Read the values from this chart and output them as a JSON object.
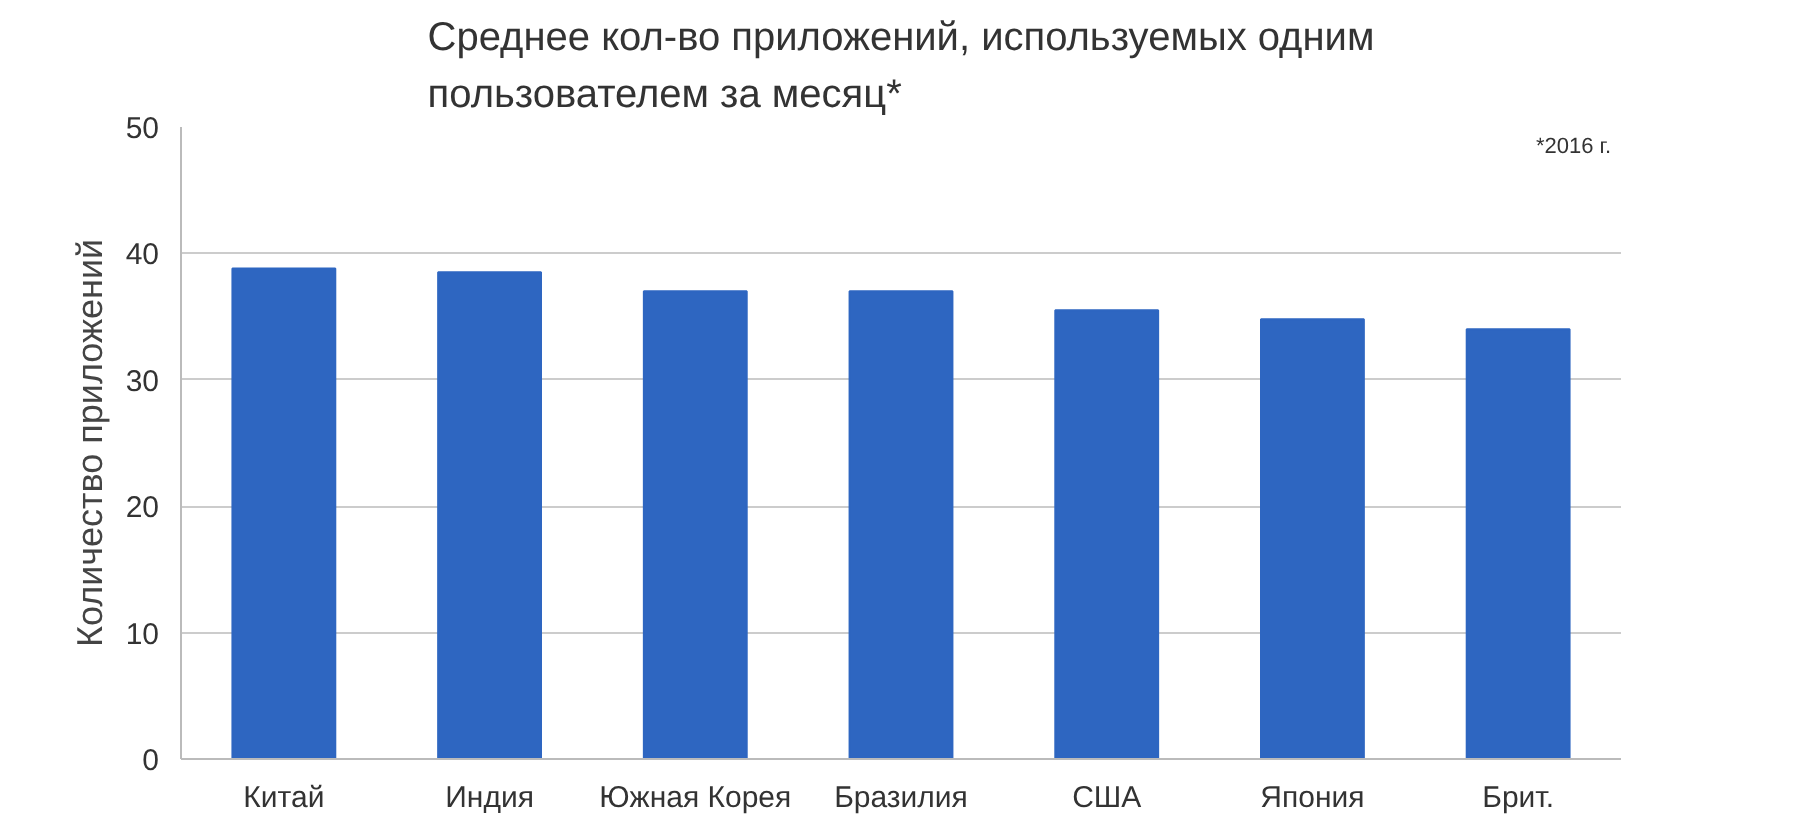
{
  "chart_data": {
    "type": "bar",
    "title": "Среднее кол-во приложений, используемых одним пользователем за месяц*",
    "ylabel": "Количество приложений",
    "categories": [
      "Китай",
      "Индия",
      "Южная Корея",
      "Бразилия",
      "США",
      "Япония",
      "Брит."
    ],
    "values": [
      38.8,
      38.5,
      37.0,
      37.0,
      35.5,
      34.8,
      34.0
    ],
    "color": "#2e66c1",
    "ylim": [
      0,
      50
    ],
    "yticks": [
      0,
      10,
      20,
      30,
      40,
      50
    ],
    "grid": "y",
    "annotations": [
      "*2016 г."
    ]
  }
}
